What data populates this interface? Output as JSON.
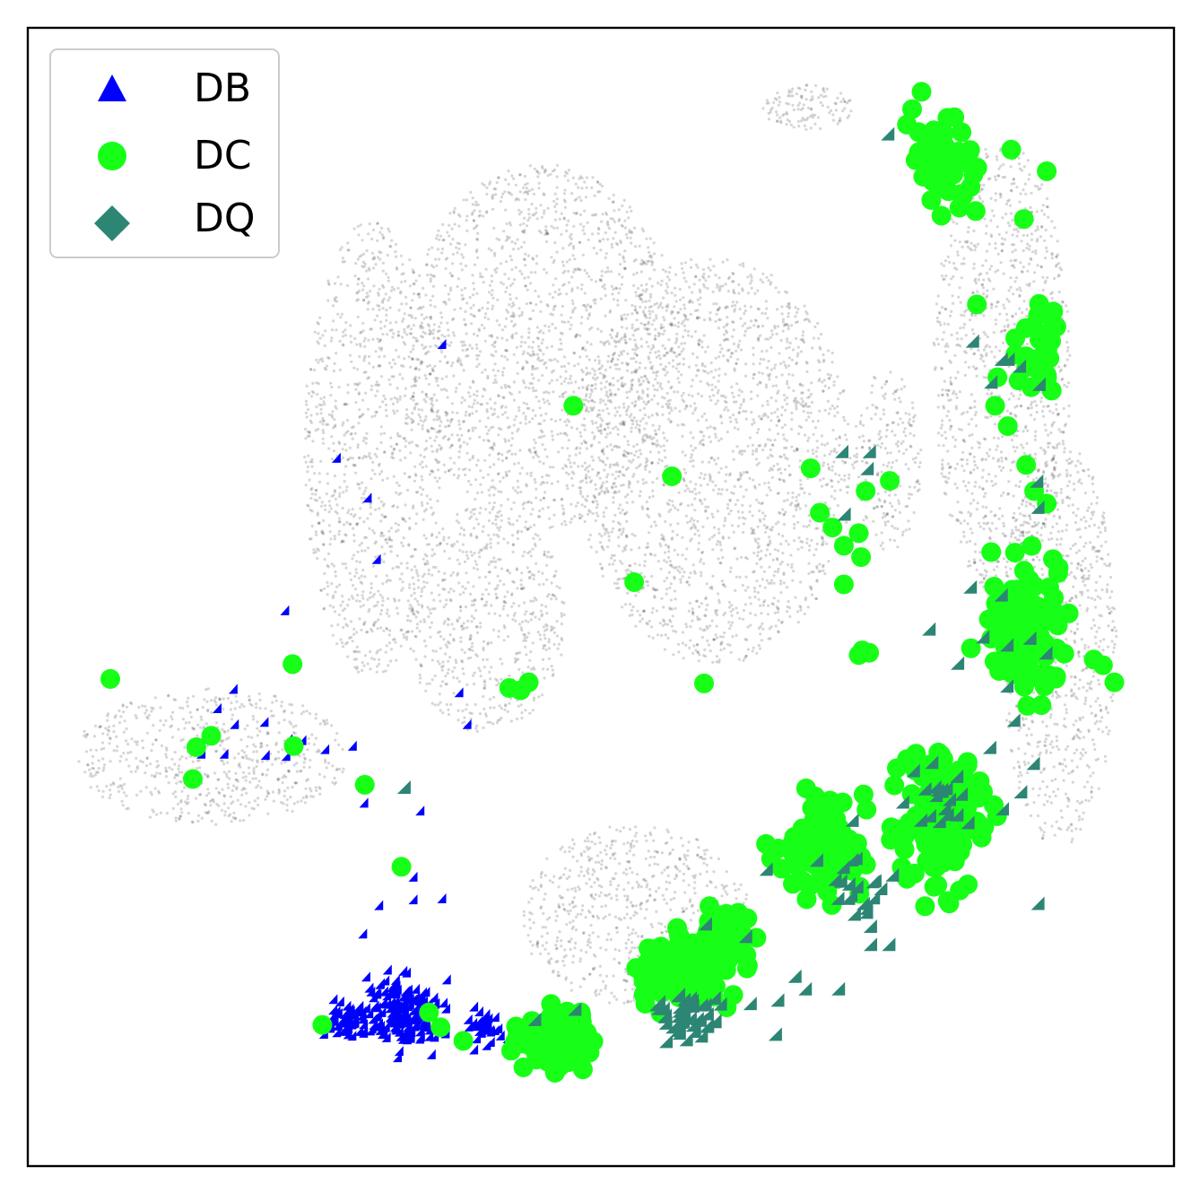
{
  "chart_data": {
    "type": "scatter",
    "title": "",
    "xlabel": "",
    "ylabel": "",
    "axis_ticks": "none",
    "grid": false,
    "xlim": [
      0,
      1
    ],
    "ylim": [
      0,
      1
    ],
    "legend": {
      "placement": "top-left",
      "entries": [
        {
          "label": "DB",
          "marker": "triangle",
          "color": "#0000ff"
        },
        {
          "label": "DC",
          "marker": "circle",
          "color": "#17ff17"
        },
        {
          "label": "DQ",
          "marker": "diamond",
          "color": "#2d8574"
        }
      ]
    },
    "background": {
      "description_color": "#000000",
      "regions": [
        {
          "cx": 0.45,
          "cy": 0.72,
          "rx": 0.12,
          "ry": 0.16
        },
        {
          "cx": 0.6,
          "cy": 0.62,
          "rx": 0.12,
          "ry": 0.18
        },
        {
          "cx": 0.3,
          "cy": 0.63,
          "rx": 0.06,
          "ry": 0.2
        },
        {
          "cx": 0.16,
          "cy": 0.36,
          "rx": 0.12,
          "ry": 0.06
        },
        {
          "cx": 0.4,
          "cy": 0.48,
          "rx": 0.07,
          "ry": 0.1
        },
        {
          "cx": 0.85,
          "cy": 0.7,
          "rx": 0.06,
          "ry": 0.2
        },
        {
          "cx": 0.9,
          "cy": 0.46,
          "rx": 0.05,
          "ry": 0.18
        },
        {
          "cx": 0.75,
          "cy": 0.62,
          "rx": 0.03,
          "ry": 0.08
        },
        {
          "cx": 0.68,
          "cy": 0.93,
          "rx": 0.04,
          "ry": 0.02
        },
        {
          "cx": 0.53,
          "cy": 0.22,
          "rx": 0.1,
          "ry": 0.08
        }
      ]
    },
    "series": [
      {
        "name": "DB",
        "marker": "triangle",
        "color": "#0000ff",
        "points": [
          [
            0.365,
            0.718
          ],
          [
            0.273,
            0.618
          ],
          [
            0.3,
            0.583
          ],
          [
            0.308,
            0.529
          ],
          [
            0.228,
            0.484
          ],
          [
            0.38,
            0.412
          ],
          [
            0.387,
            0.384
          ],
          [
            0.183,
            0.415
          ],
          [
            0.169,
            0.398
          ],
          [
            0.184,
            0.384
          ],
          [
            0.157,
            0.373
          ],
          [
            0.21,
            0.386
          ],
          [
            0.243,
            0.37
          ],
          [
            0.231,
            0.371
          ],
          [
            0.175,
            0.358
          ],
          [
            0.155,
            0.358
          ],
          [
            0.211,
            0.357
          ],
          [
            0.263,
            0.362
          ],
          [
            0.287,
            0.365
          ],
          [
            0.229,
            0.356
          ],
          [
            0.297,
            0.315
          ],
          [
            0.346,
            0.308
          ],
          [
            0.34,
            0.25
          ],
          [
            0.31,
            0.225
          ],
          [
            0.34,
            0.23
          ],
          [
            0.365,
            0.231
          ],
          [
            0.296,
            0.2
          ],
          [
            0.262,
            0.112
          ],
          [
            0.58,
            0.108
          ]
        ],
        "clusters": [
          {
            "cx": 0.33,
            "cy": 0.13,
            "rx": 0.07,
            "ry": 0.05,
            "count": 180
          },
          {
            "cx": 0.28,
            "cy": 0.125,
            "rx": 0.03,
            "ry": 0.025,
            "count": 40
          },
          {
            "cx": 0.4,
            "cy": 0.115,
            "rx": 0.03,
            "ry": 0.03,
            "count": 30
          }
        ]
      },
      {
        "name": "DC",
        "marker": "circle",
        "color": "#17ff17",
        "points": [
          [
            0.476,
            0.668
          ],
          [
            0.562,
            0.606
          ],
          [
            0.529,
            0.513
          ],
          [
            0.072,
            0.428
          ],
          [
            0.231,
            0.441
          ],
          [
            0.59,
            0.424
          ],
          [
            0.147,
            0.368
          ],
          [
            0.16,
            0.378
          ],
          [
            0.232,
            0.369
          ],
          [
            0.144,
            0.34
          ],
          [
            0.294,
            0.335
          ],
          [
            0.326,
            0.263
          ],
          [
            0.257,
            0.124
          ],
          [
            0.35,
            0.135
          ],
          [
            0.36,
            0.122
          ],
          [
            0.38,
            0.11
          ],
          [
            0.42,
            0.42
          ],
          [
            0.43,
            0.418
          ],
          [
            0.437,
            0.425
          ],
          [
            0.712,
            0.545
          ],
          [
            0.725,
            0.556
          ],
          [
            0.731,
            0.593
          ],
          [
            0.683,
            0.613
          ],
          [
            0.691,
            0.574
          ],
          [
            0.702,
            0.561
          ],
          [
            0.712,
            0.511
          ],
          [
            0.727,
            0.535
          ],
          [
            0.725,
            0.449
          ],
          [
            0.734,
            0.451
          ],
          [
            0.728,
            0.453
          ],
          [
            0.752,
            0.602
          ],
          [
            0.767,
            0.915
          ],
          [
            0.788,
            0.902
          ],
          [
            0.804,
            0.877
          ],
          [
            0.814,
            0.854
          ],
          [
            0.825,
            0.871
          ],
          [
            0.827,
            0.839
          ],
          [
            0.828,
            0.757
          ],
          [
            0.858,
            0.893
          ],
          [
            0.869,
            0.832
          ],
          [
            0.889,
            0.874
          ],
          [
            0.846,
            0.693
          ],
          [
            0.844,
            0.668
          ],
          [
            0.855,
            0.65
          ],
          [
            0.871,
            0.616
          ],
          [
            0.878,
            0.593
          ],
          [
            0.889,
            0.582
          ],
          [
            0.93,
            0.445
          ],
          [
            0.938,
            0.44
          ],
          [
            0.948,
            0.425
          ]
        ],
        "clusters": [
          {
            "cx": 0.8,
            "cy": 0.88,
            "rx": 0.05,
            "ry": 0.08,
            "count": 45
          },
          {
            "cx": 0.88,
            "cy": 0.72,
            "rx": 0.04,
            "ry": 0.07,
            "count": 30
          },
          {
            "cx": 0.87,
            "cy": 0.47,
            "rx": 0.06,
            "ry": 0.1,
            "count": 120
          },
          {
            "cx": 0.8,
            "cy": 0.3,
            "rx": 0.07,
            "ry": 0.1,
            "count": 130
          },
          {
            "cx": 0.69,
            "cy": 0.28,
            "rx": 0.07,
            "ry": 0.08,
            "count": 90
          },
          {
            "cx": 0.57,
            "cy": 0.17,
            "rx": 0.07,
            "ry": 0.05,
            "count": 110
          },
          {
            "cx": 0.46,
            "cy": 0.11,
            "rx": 0.05,
            "ry": 0.04,
            "count": 200
          },
          {
            "cx": 0.61,
            "cy": 0.2,
            "rx": 0.05,
            "ry": 0.04,
            "count": 60
          }
        ]
      },
      {
        "name": "DQ",
        "marker": "diamond",
        "color": "#2d8574",
        "points": [
          [
            0.756,
            0.901
          ],
          [
            0.83,
            0.719
          ],
          [
            0.855,
            0.703
          ],
          [
            0.846,
            0.683
          ],
          [
            0.861,
            0.703
          ],
          [
            0.871,
            0.697
          ],
          [
            0.716,
            0.622
          ],
          [
            0.74,
            0.622
          ],
          [
            0.738,
            0.607
          ],
          [
            0.718,
            0.567
          ],
          [
            0.888,
            0.681
          ],
          [
            0.886,
            0.596
          ],
          [
            0.887,
            0.573
          ],
          [
            0.828,
            0.503
          ],
          [
            0.855,
            0.496
          ],
          [
            0.839,
            0.459
          ],
          [
            0.86,
            0.452
          ],
          [
            0.88,
            0.458
          ],
          [
            0.894,
            0.445
          ],
          [
            0.792,
            0.466
          ],
          [
            0.817,
            0.436
          ],
          [
            0.86,
            0.416
          ],
          [
            0.866,
            0.386
          ],
          [
            0.845,
            0.362
          ],
          [
            0.883,
            0.348
          ],
          [
            0.803,
            0.325
          ],
          [
            0.82,
            0.321
          ],
          [
            0.769,
            0.314
          ],
          [
            0.801,
            0.297
          ],
          [
            0.826,
            0.296
          ],
          [
            0.856,
            0.308
          ],
          [
            0.872,
            0.323
          ],
          [
            0.76,
            0.25
          ],
          [
            0.725,
            0.298
          ],
          [
            0.694,
            0.263
          ],
          [
            0.71,
            0.246
          ],
          [
            0.65,
            0.255
          ],
          [
            0.597,
            0.207
          ],
          [
            0.632,
            0.196
          ],
          [
            0.741,
            0.189
          ],
          [
            0.757,
            0.189
          ],
          [
            0.713,
            0.15
          ],
          [
            0.684,
            0.15
          ],
          [
            0.66,
            0.14
          ],
          [
            0.675,
            0.161
          ],
          [
            0.636,
            0.137
          ],
          [
            0.448,
            0.123
          ],
          [
            0.483,
            0.132
          ],
          [
            0.334,
            0.327
          ],
          [
            0.658,
            0.11
          ],
          [
            0.887,
            0.225
          ]
        ],
        "clusters": [
          {
            "cx": 0.58,
            "cy": 0.13,
            "rx": 0.05,
            "ry": 0.04,
            "count": 45
          },
          {
            "cx": 0.73,
            "cy": 0.24,
            "rx": 0.04,
            "ry": 0.05,
            "count": 18
          },
          {
            "cx": 0.8,
            "cy": 0.32,
            "rx": 0.04,
            "ry": 0.06,
            "count": 15
          }
        ]
      }
    ]
  }
}
